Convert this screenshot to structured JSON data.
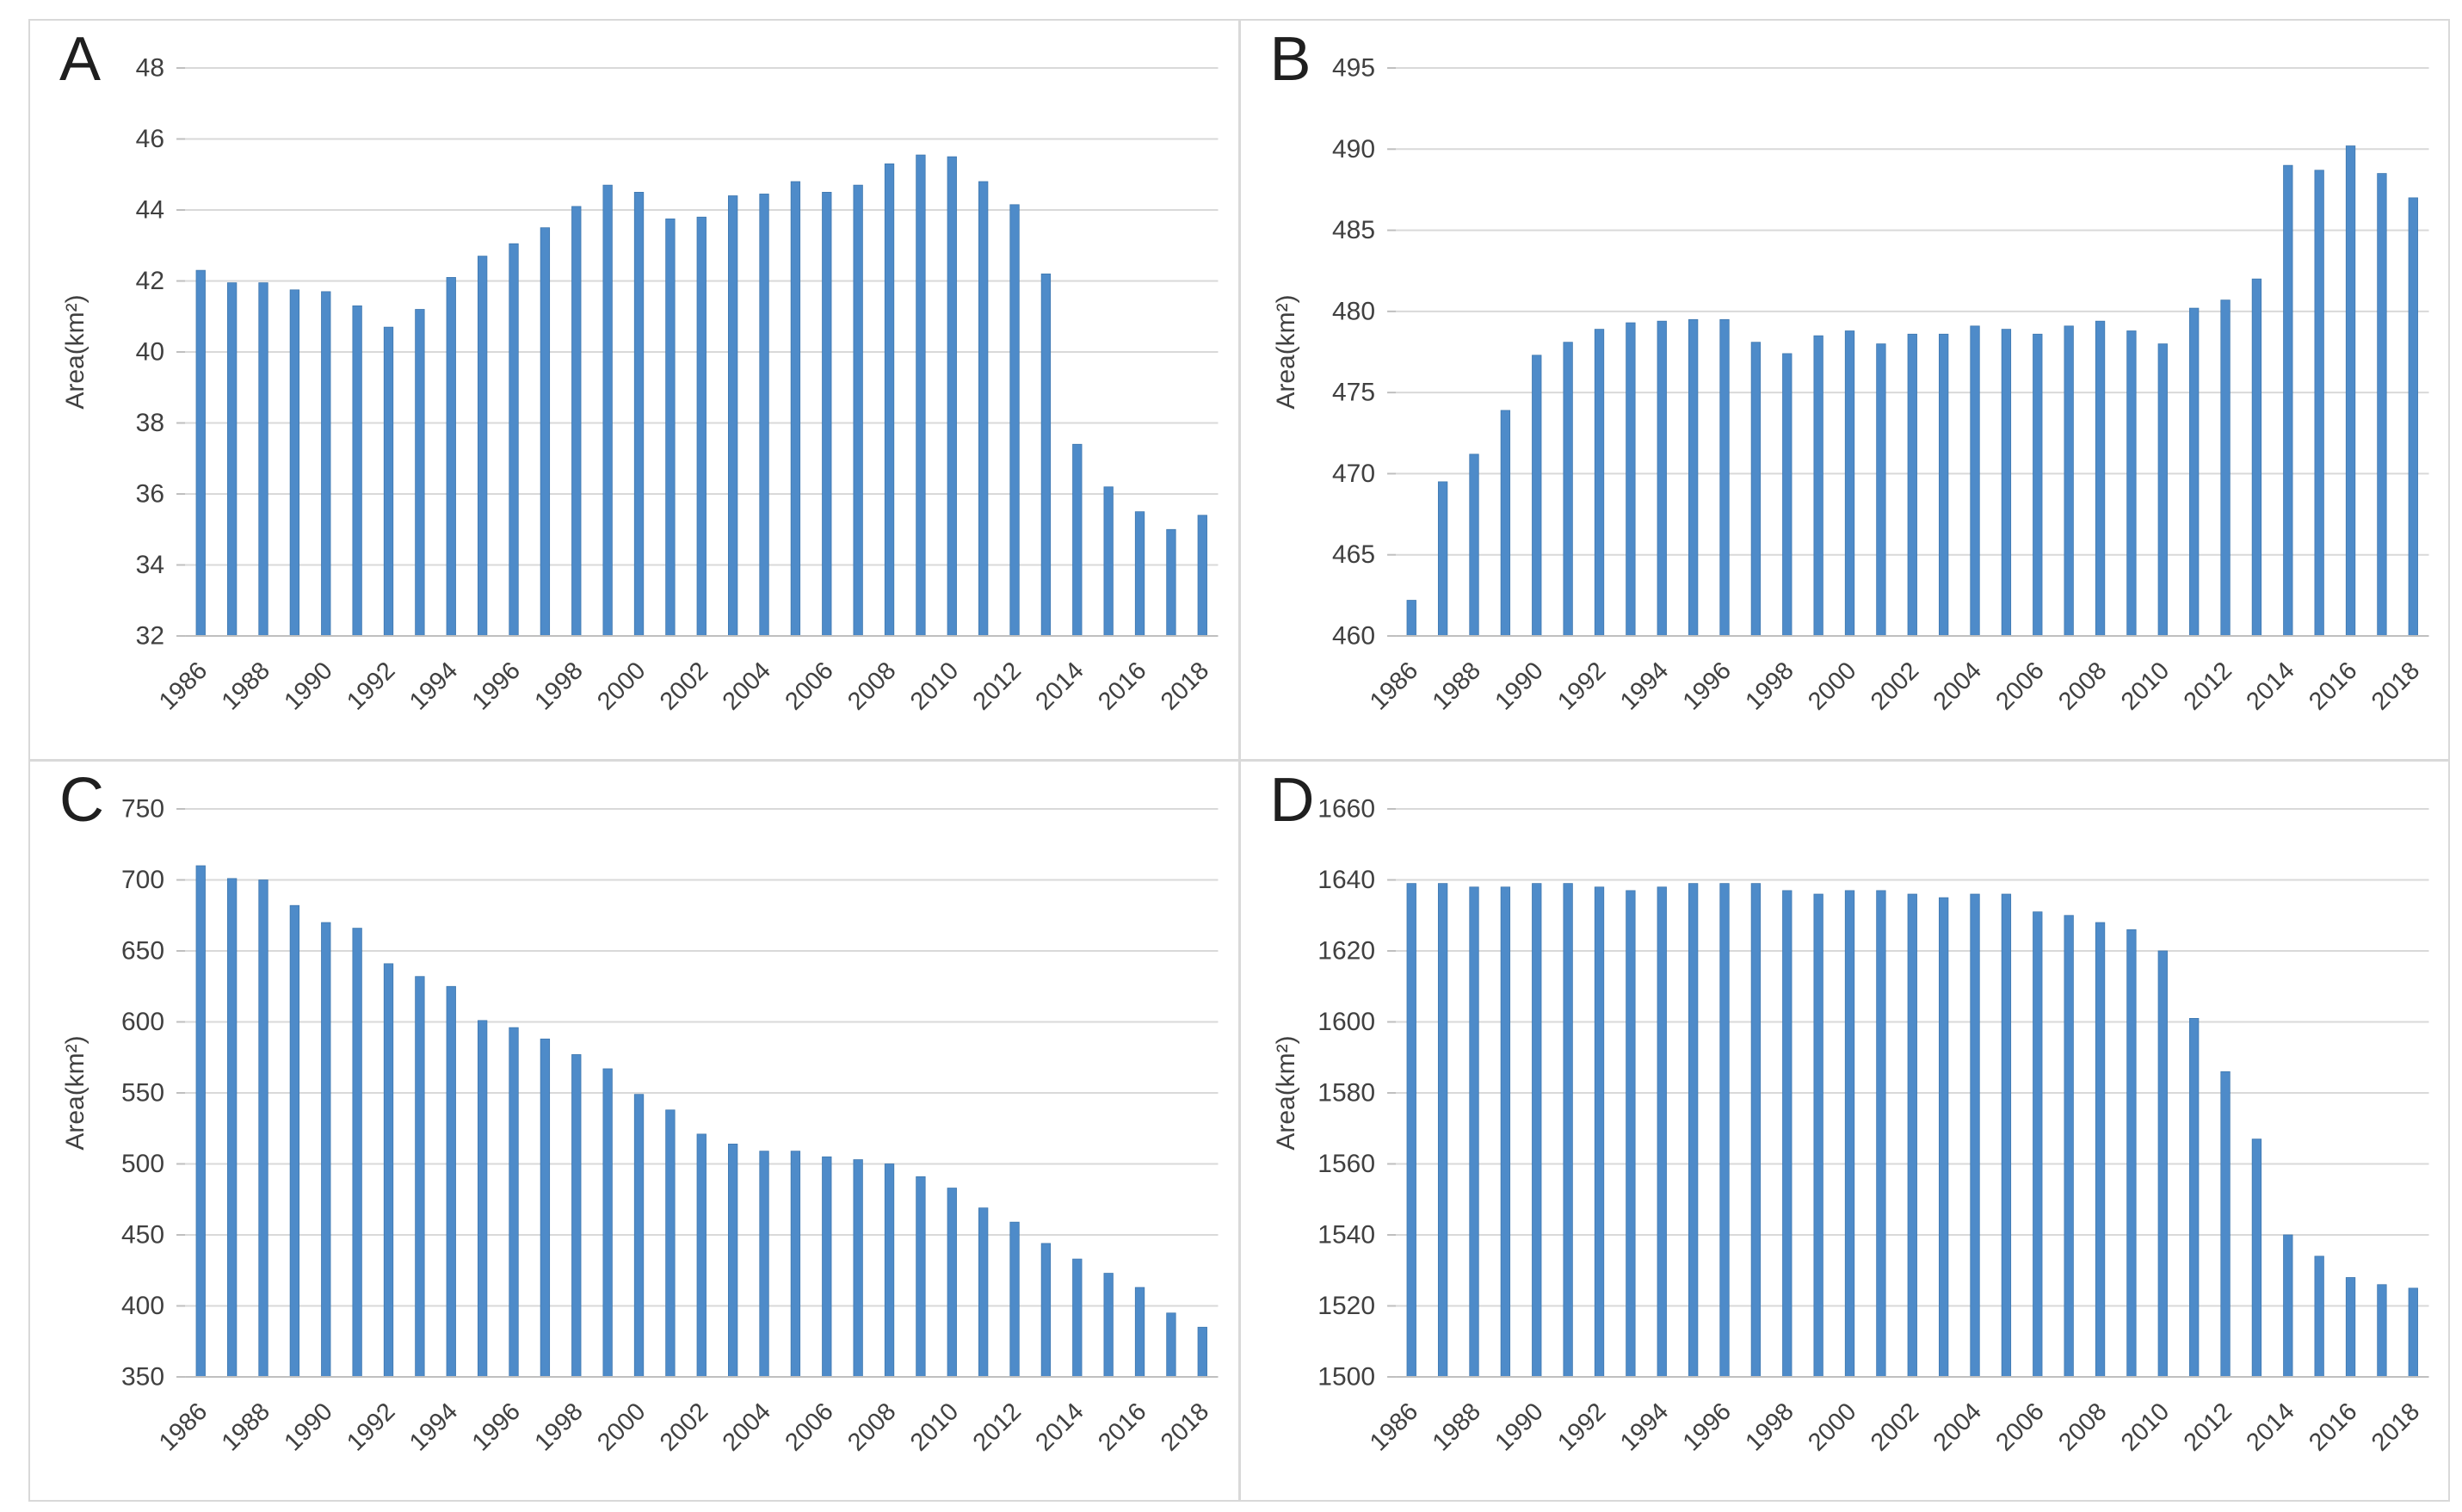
{
  "style": {
    "background": "#ffffff",
    "panel_border_color": "#d9d9d9",
    "bar_color": "#4e8bc9",
    "bar_edge_color": "#3d76ad",
    "gridline_color": "#d9d9d9",
    "axis_line_color": "#bfbfbf",
    "tick_color": "#bfbfbf",
    "label_color": "#404040",
    "panel_letter_color": "#1f1f1f"
  },
  "chart_data": [
    {
      "type": "bar",
      "panel_label": "A",
      "title": "",
      "xlabel": "",
      "ylabel": "Area(km²)",
      "ylim": [
        32,
        48
      ],
      "yticks": [
        32,
        34,
        36,
        38,
        40,
        42,
        44,
        46,
        48
      ],
      "grid": true,
      "legend": false,
      "categories": [
        1986,
        1987,
        1988,
        1989,
        1990,
        1991,
        1992,
        1993,
        1994,
        1995,
        1996,
        1997,
        1998,
        1999,
        2000,
        2001,
        2002,
        2003,
        2004,
        2005,
        2006,
        2007,
        2008,
        2009,
        2010,
        2011,
        2012,
        2013,
        2014,
        2015,
        2016,
        2017,
        2018
      ],
      "xtick_labels": [
        1986,
        1988,
        1990,
        1992,
        1994,
        1996,
        1998,
        2000,
        2002,
        2004,
        2006,
        2008,
        2010,
        2012,
        2014,
        2016,
        2018
      ],
      "values": [
        42.3,
        41.95,
        41.95,
        41.75,
        41.7,
        41.3,
        40.7,
        41.2,
        42.1,
        42.7,
        43.05,
        43.5,
        44.1,
        44.7,
        44.5,
        43.75,
        43.8,
        44.4,
        44.45,
        44.8,
        44.5,
        44.7,
        45.3,
        45.55,
        45.5,
        44.8,
        44.15,
        42.2,
        37.4,
        36.2,
        35.5,
        35.0,
        35.4
      ]
    },
    {
      "type": "bar",
      "panel_label": "B",
      "title": "",
      "xlabel": "",
      "ylabel": "Area(km²)",
      "ylim": [
        460,
        495
      ],
      "yticks": [
        460,
        465,
        470,
        475,
        480,
        485,
        490,
        495
      ],
      "grid": true,
      "legend": false,
      "categories": [
        1986,
        1987,
        1988,
        1989,
        1990,
        1991,
        1992,
        1993,
        1994,
        1995,
        1996,
        1997,
        1998,
        1999,
        2000,
        2001,
        2002,
        2003,
        2004,
        2005,
        2006,
        2007,
        2008,
        2009,
        2010,
        2011,
        2012,
        2013,
        2014,
        2015,
        2016,
        2017,
        2018
      ],
      "xtick_labels": [
        1986,
        1988,
        1990,
        1992,
        1994,
        1996,
        1998,
        2000,
        2002,
        2004,
        2006,
        2008,
        2010,
        2012,
        2014,
        2016,
        2018
      ],
      "values": [
        462.2,
        469.5,
        471.2,
        473.9,
        477.3,
        478.1,
        478.9,
        479.3,
        479.4,
        479.5,
        479.5,
        478.1,
        477.4,
        478.5,
        478.8,
        478.0,
        478.6,
        478.6,
        479.1,
        478.9,
        478.6,
        479.1,
        479.4,
        478.8,
        478.0,
        480.2,
        480.7,
        482.0,
        489.0,
        488.7,
        490.2,
        488.5,
        487.0
      ]
    },
    {
      "type": "bar",
      "panel_label": "C",
      "title": "",
      "xlabel": "",
      "ylabel": "Area(km²)",
      "ylim": [
        350,
        750
      ],
      "yticks": [
        350,
        400,
        450,
        500,
        550,
        600,
        650,
        700,
        750
      ],
      "grid": true,
      "legend": false,
      "categories": [
        1986,
        1987,
        1988,
        1989,
        1990,
        1991,
        1992,
        1993,
        1994,
        1995,
        1996,
        1997,
        1998,
        1999,
        2000,
        2001,
        2002,
        2003,
        2004,
        2005,
        2006,
        2007,
        2008,
        2009,
        2010,
        2011,
        2012,
        2013,
        2014,
        2015,
        2016,
        2017,
        2018
      ],
      "xtick_labels": [
        1986,
        1988,
        1990,
        1992,
        1994,
        1996,
        1998,
        2000,
        2002,
        2004,
        2006,
        2008,
        2010,
        2012,
        2014,
        2016,
        2018
      ],
      "values": [
        710,
        701,
        700,
        682,
        670,
        666,
        641,
        632,
        625,
        601,
        596,
        588,
        577,
        567,
        549,
        538,
        521,
        514,
        509,
        509,
        505,
        503,
        500,
        491,
        483,
        469,
        459,
        444,
        433,
        423,
        413,
        395,
        385
      ]
    },
    {
      "type": "bar",
      "panel_label": "D",
      "title": "",
      "xlabel": "",
      "ylabel": "Area(km²)",
      "ylim": [
        1500,
        1660
      ],
      "yticks": [
        1500,
        1520,
        1540,
        1560,
        1580,
        1600,
        1620,
        1640,
        1660
      ],
      "grid": true,
      "legend": false,
      "categories": [
        1986,
        1987,
        1988,
        1989,
        1990,
        1991,
        1992,
        1993,
        1994,
        1995,
        1996,
        1997,
        1998,
        1999,
        2000,
        2001,
        2002,
        2003,
        2004,
        2005,
        2006,
        2007,
        2008,
        2009,
        2010,
        2011,
        2012,
        2013,
        2014,
        2015,
        2016,
        2017,
        2018
      ],
      "xtick_labels": [
        1986,
        1988,
        1990,
        1992,
        1994,
        1996,
        1998,
        2000,
        2002,
        2004,
        2006,
        2008,
        2010,
        2012,
        2014,
        2016,
        2018
      ],
      "values": [
        1639,
        1639,
        1638,
        1638,
        1639,
        1639,
        1638,
        1637,
        1638,
        1639,
        1639,
        1639,
        1637,
        1636,
        1637,
        1637,
        1636,
        1635,
        1636,
        1636,
        1631,
        1630,
        1628,
        1626,
        1620,
        1601,
        1586,
        1567,
        1540,
        1534,
        1528,
        1526,
        1525
      ]
    }
  ]
}
